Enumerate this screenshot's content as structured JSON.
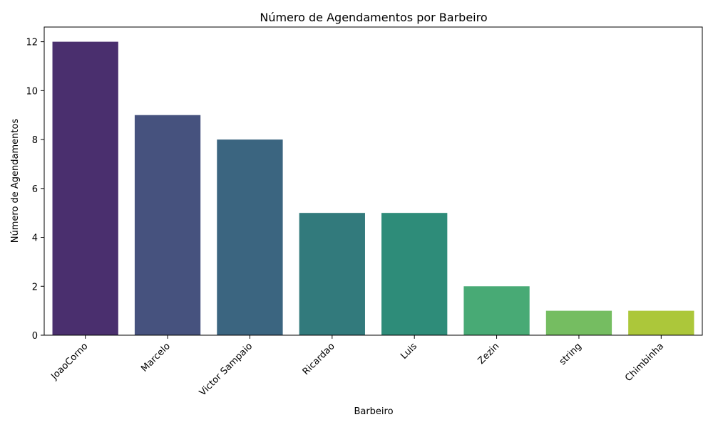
{
  "chart_data": {
    "type": "bar",
    "title": "Número de Agendamentos por Barbeiro",
    "xlabel": "Barbeiro",
    "ylabel": "Número de Agendamentos",
    "categories": [
      "JoaoCorno",
      "Marcelo",
      "Victor Sampaio",
      "Ricardao",
      "Luis",
      "Zezin",
      "string",
      "Chimbinha"
    ],
    "values": [
      12,
      9,
      8,
      5,
      5,
      2,
      1,
      1
    ],
    "colors": [
      "#4a2f6e",
      "#46527e",
      "#3b6580",
      "#327a7c",
      "#2e8c79",
      "#48aa75",
      "#75bd61",
      "#acc73a"
    ],
    "ylim": [
      0,
      12.6
    ],
    "yticks": [
      0,
      2,
      4,
      6,
      8,
      10,
      12
    ],
    "grid": false,
    "legend": "none"
  }
}
